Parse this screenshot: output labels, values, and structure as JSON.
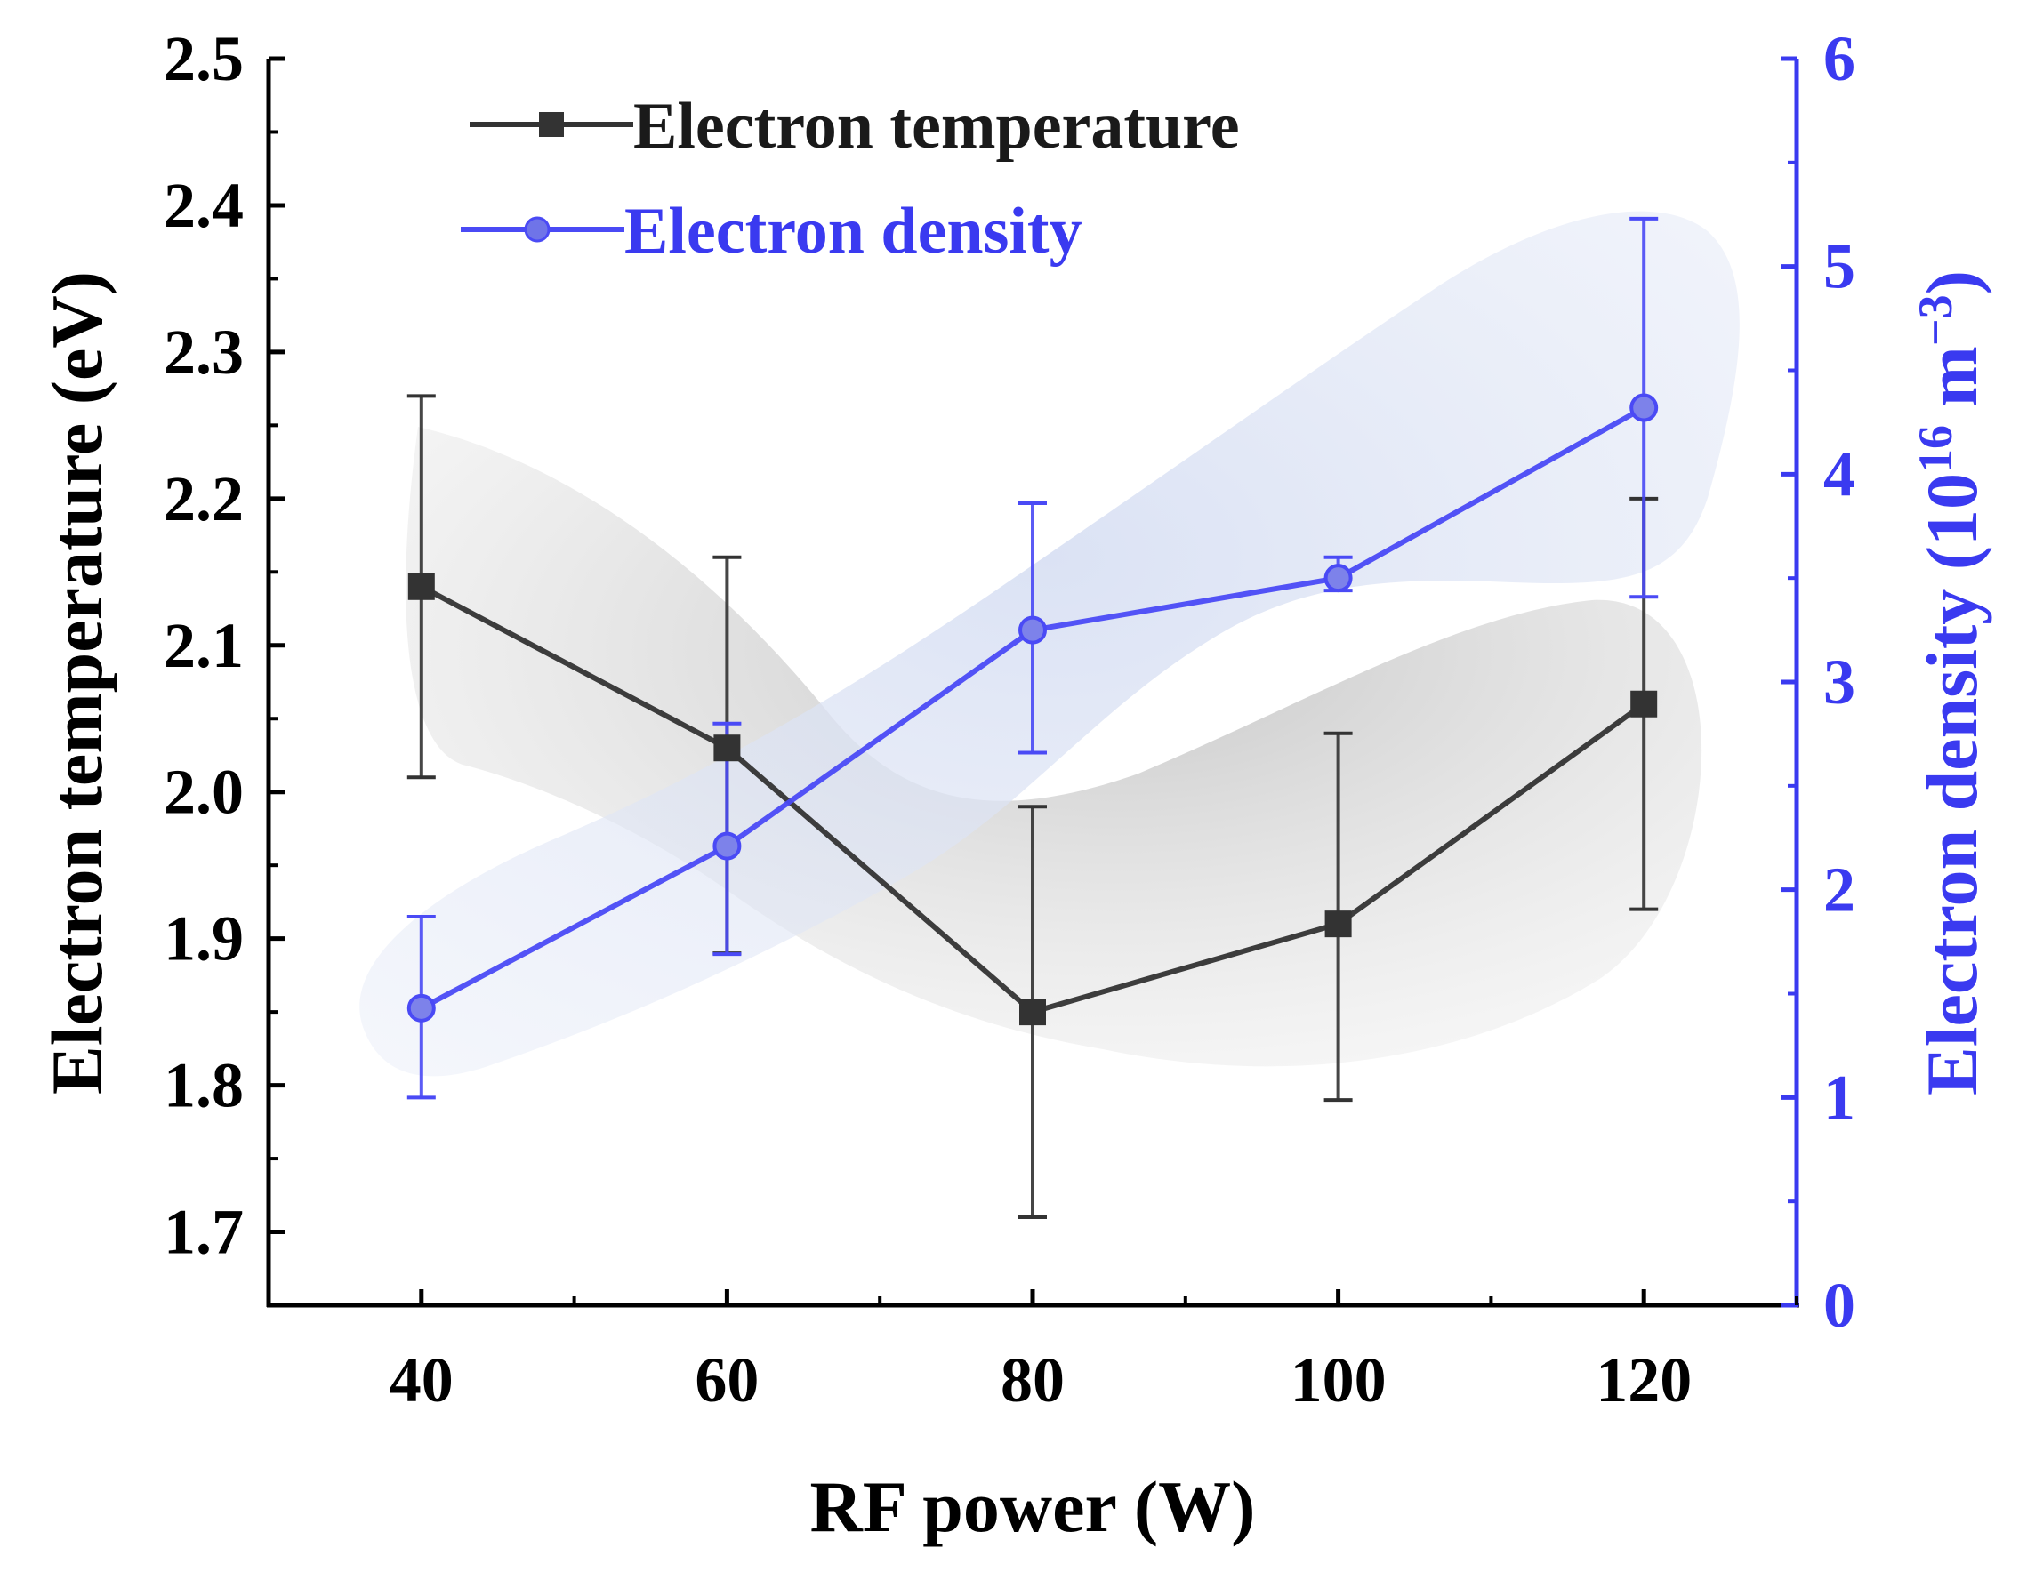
{
  "chart_data": {
    "type": "line",
    "x": [
      40,
      60,
      80,
      100,
      120
    ],
    "xlim": [
      30,
      130
    ],
    "xticks": [
      40,
      60,
      80,
      100,
      120
    ],
    "xtick_labels": [
      "40",
      "60",
      "80",
      "100",
      "120"
    ],
    "xlabel": "RF power (W)",
    "y_left": {
      "label": "Electron temperature (eV)",
      "lim": [
        1.65,
        2.5
      ],
      "ticks": [
        1.7,
        1.8,
        1.9,
        2.0,
        2.1,
        2.2,
        2.3,
        2.4,
        2.5
      ],
      "tick_labels": [
        "1.7",
        "1.8",
        "1.9",
        "2.0",
        "2.1",
        "2.2",
        "2.3",
        "2.4",
        "2.5"
      ]
    },
    "y_right": {
      "label_prefix": "Electron density (10",
      "label_exp1": "16",
      "label_mid": " m",
      "label_exp2": "−3",
      "label_suffix": ")",
      "lim": [
        0,
        6
      ],
      "ticks": [
        0,
        1,
        2,
        3,
        4,
        5,
        6
      ],
      "tick_labels": [
        "0",
        "1",
        "2",
        "3",
        "4",
        "5",
        "6"
      ]
    },
    "series": [
      {
        "name": "Electron temperature",
        "axis": "left",
        "marker": "square",
        "color": "#333333",
        "values": [
          2.14,
          2.03,
          1.85,
          1.91,
          2.06
        ],
        "err_low": [
          2.01,
          1.89,
          1.71,
          1.79,
          1.92
        ],
        "err_high": [
          2.27,
          2.16,
          1.99,
          2.04,
          2.2
        ]
      },
      {
        "name": "Electron density",
        "axis": "right",
        "marker": "circle",
        "color": "#4a4af5",
        "values": [
          1.43,
          2.21,
          3.25,
          3.5,
          4.32
        ],
        "err_low": [
          1.0,
          1.69,
          2.66,
          3.44,
          3.41
        ],
        "err_high": [
          1.87,
          2.8,
          3.86,
          3.6,
          5.23
        ]
      }
    ],
    "legend": {
      "position": "top-left",
      "entries": [
        "Electron temperature",
        "Electron density"
      ]
    },
    "colors": {
      "left_axis": "#000000",
      "right_axis": "#3a3af0",
      "temperature_band": "#cfcfcf",
      "density_band": "#dde4f4"
    }
  }
}
